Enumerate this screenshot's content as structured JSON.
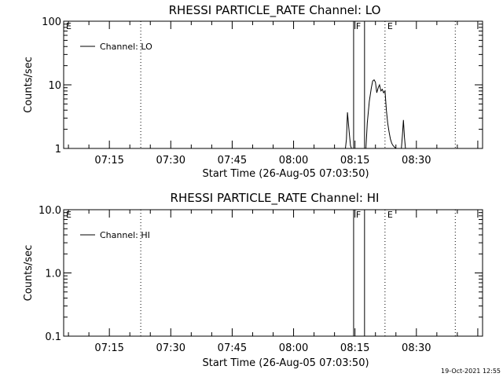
{
  "timestamp": "19-Oct-2021 12:55",
  "chart_data": [
    {
      "type": "line",
      "title": "RHESSI PARTICLE_RATE Channel: LO",
      "xlabel": "Start Time (26-Aug-05 07:03:50)",
      "ylabel": "Counts/sec",
      "yscale": "log",
      "ylim": [
        1,
        100
      ],
      "xlim": [
        "07:03:50",
        "08:46:10"
      ],
      "ytick_labels": [
        "100",
        "10",
        "1"
      ],
      "xtick_labels": [
        "07:15",
        "07:30",
        "07:45",
        "08:00",
        "08:15",
        "08:30"
      ],
      "legend": "Channel: LO",
      "legend_position": "top-left",
      "flags": [
        {
          "label": "E",
          "time": "07:03:50",
          "style": "text"
        },
        {
          "label": "",
          "time": "07:22:40",
          "style": "dotted"
        },
        {
          "label": "F",
          "time": "08:14:40",
          "style": "solid"
        },
        {
          "label": "",
          "time": "08:17:20",
          "style": "solid"
        },
        {
          "label": "E",
          "time": "08:22:20",
          "style": "dotted"
        },
        {
          "label": "",
          "time": "08:39:30",
          "style": "dotted"
        }
      ],
      "series": [
        {
          "name": "Channel: LO",
          "segments": [
            {
              "x": [
                "08:12:40",
                "08:12:55",
                "08:13:10",
                "08:13:25",
                "08:13:40",
                "08:13:55",
                "08:14:10"
              ],
              "y": [
                1,
                1.4,
                3.7,
                2.4,
                1.6,
                1.1,
                1
              ]
            },
            {
              "x": [
                "08:17:40",
                "08:18:00",
                "08:18:30",
                "08:19:00",
                "08:19:20",
                "08:19:40",
                "08:20:00",
                "08:20:20",
                "08:20:40",
                "08:21:00",
                "08:21:20",
                "08:21:40",
                "08:22:00",
                "08:22:20",
                "08:22:40",
                "08:23:00",
                "08:23:20",
                "08:23:40",
                "08:24:00",
                "08:24:20",
                "08:24:40",
                "08:25:00"
              ],
              "y": [
                1,
                2.5,
                5.5,
                9,
                11.5,
                12,
                11,
                7.5,
                9,
                10,
                8,
                8.5,
                7.5,
                8,
                4,
                2.5,
                1.8,
                1.4,
                1.2,
                1.1,
                1.05,
                1
              ]
            },
            {
              "x": [
                "08:26:20",
                "08:26:35",
                "08:26:50",
                "08:27:05",
                "08:27:20"
              ],
              "y": [
                1,
                1.6,
                2.8,
                1.5,
                1
              ]
            }
          ]
        }
      ]
    },
    {
      "type": "line",
      "title": "RHESSI PARTICLE_RATE Channel: HI",
      "xlabel": "Start Time (26-Aug-05 07:03:50)",
      "ylabel": "Counts/sec",
      "yscale": "log",
      "ylim": [
        0.1,
        10
      ],
      "xlim": [
        "07:03:50",
        "08:46:10"
      ],
      "ytick_labels": [
        "10.0",
        "1.0",
        "0.1"
      ],
      "xtick_labels": [
        "07:15",
        "07:30",
        "07:45",
        "08:00",
        "08:15",
        "08:30"
      ],
      "legend": "Channel: HI",
      "legend_position": "top-left",
      "flags": [
        {
          "label": "E",
          "time": "07:03:50",
          "style": "text"
        },
        {
          "label": "",
          "time": "07:22:40",
          "style": "dotted"
        },
        {
          "label": "F",
          "time": "08:14:40",
          "style": "solid"
        },
        {
          "label": "",
          "time": "08:17:20",
          "style": "solid"
        },
        {
          "label": "E",
          "time": "08:22:20",
          "style": "dotted"
        },
        {
          "label": "",
          "time": "08:39:30",
          "style": "dotted"
        }
      ],
      "series": [
        {
          "name": "Channel: HI",
          "segments": []
        }
      ]
    }
  ]
}
